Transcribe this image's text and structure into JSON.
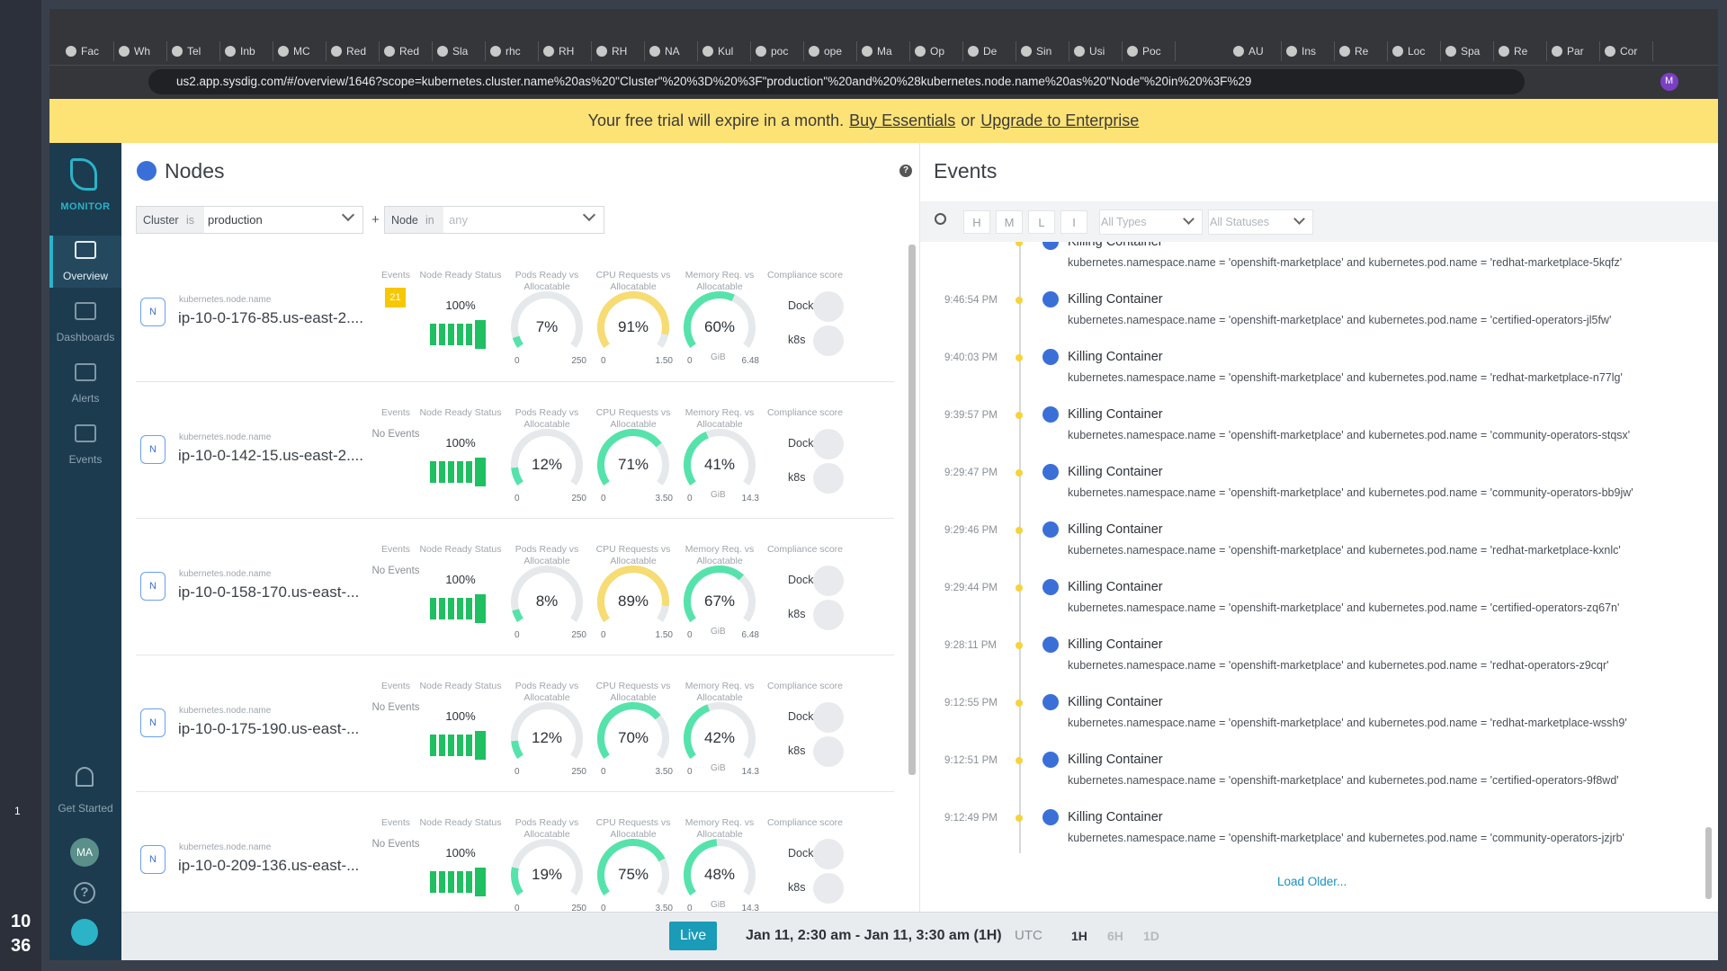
{
  "browser": {
    "tabs": [
      "Fac",
      "Wh",
      "Tel",
      "Inb",
      "MC",
      "Red",
      "Red",
      "Sla",
      "rhc",
      "RH",
      "RH",
      "NA",
      "Kul",
      "poc",
      "ope",
      "Ma",
      "Op",
      "De",
      "Sin",
      "Usi",
      "Poc",
      "AU",
      "Ins",
      "Re",
      "Loc",
      "Spa",
      "Re",
      "Par",
      "Cor"
    ],
    "url": "us2.app.sysdig.com/#/overview/1646?scope=kubernetes.cluster.name%20as%20\"Cluster\"%20%3D%20%3F\"production\"%20and%20%28kubernetes.node.name%20as%20\"Node\"%20in%20%3F%29",
    "profile": "M"
  },
  "banner": {
    "text": "Your free trial will expire in a month.",
    "link1": "Buy Essentials",
    "or": "or",
    "link2": "Upgrade to Enterprise"
  },
  "os": {
    "badge": "1",
    "clock": [
      "10",
      "36"
    ]
  },
  "sidebar": {
    "brand": "MONITOR",
    "items": [
      "Overview",
      "Dashboards",
      "Alerts",
      "Events"
    ],
    "get_started": "Get Started",
    "avatar": "MA",
    "help": "?"
  },
  "nodes": {
    "title": "Nodes",
    "help": "?",
    "plus": "+",
    "filters": [
      {
        "key": "Cluster",
        "op": "is",
        "value": "production"
      },
      {
        "key": "Node",
        "op": "in",
        "value": "any"
      }
    ],
    "headers": {
      "events": "Events",
      "ready": "Node Ready Status",
      "pods": "Pods Ready vs Allocatable",
      "cpu": "CPU Requests vs Allocatable",
      "mem": "Memory Req. vs Allocatable",
      "compliance": "Compliance score"
    },
    "name_label": "kubernetes.node.name",
    "node_icon": "N",
    "compliance_labels": [
      "Docker",
      "k8s"
    ],
    "rows": [
      {
        "name": "ip-10-0-176-85.us-east-2....",
        "events": "21",
        "ready": "100%",
        "pods": {
          "value": 7,
          "label": "7%",
          "min": "0",
          "max": "250",
          "color": "#55e3ab"
        },
        "cpu": {
          "value": 91,
          "label": "91%",
          "min": "0",
          "max": "1.50",
          "color": "#f6dc72"
        },
        "mem": {
          "value": 60,
          "label": "60%",
          "min": "0",
          "unit": "GiB",
          "max": "6.48",
          "color": "#55e3ab"
        }
      },
      {
        "name": "ip-10-0-142-15.us-east-2....",
        "events": "No Events",
        "ready": "100%",
        "pods": {
          "value": 12,
          "label": "12%",
          "min": "0",
          "max": "250",
          "color": "#55e3ab"
        },
        "cpu": {
          "value": 71,
          "label": "71%",
          "min": "0",
          "max": "3.50",
          "color": "#55e3ab"
        },
        "mem": {
          "value": 41,
          "label": "41%",
          "min": "0",
          "unit": "GiB",
          "max": "14.3",
          "color": "#55e3ab"
        }
      },
      {
        "name": "ip-10-0-158-170.us-east-...",
        "events": "No Events",
        "ready": "100%",
        "pods": {
          "value": 8,
          "label": "8%",
          "min": "0",
          "max": "250",
          "color": "#55e3ab"
        },
        "cpu": {
          "value": 89,
          "label": "89%",
          "min": "0",
          "max": "1.50",
          "color": "#f6dc72"
        },
        "mem": {
          "value": 67,
          "label": "67%",
          "min": "0",
          "unit": "GiB",
          "max": "6.48",
          "color": "#55e3ab"
        }
      },
      {
        "name": "ip-10-0-175-190.us-east-...",
        "events": "No Events",
        "ready": "100%",
        "pods": {
          "value": 12,
          "label": "12%",
          "min": "0",
          "max": "250",
          "color": "#55e3ab"
        },
        "cpu": {
          "value": 70,
          "label": "70%",
          "min": "0",
          "max": "3.50",
          "color": "#55e3ab"
        },
        "mem": {
          "value": 42,
          "label": "42%",
          "min": "0",
          "unit": "GiB",
          "max": "14.3",
          "color": "#55e3ab"
        }
      },
      {
        "name": "ip-10-0-209-136.us-east-...",
        "events": "No Events",
        "ready": "100%",
        "pods": {
          "value": 19,
          "label": "19%",
          "min": "0",
          "max": "250",
          "color": "#55e3ab"
        },
        "cpu": {
          "value": 75,
          "label": "75%",
          "min": "0",
          "max": "3.50",
          "color": "#55e3ab"
        },
        "mem": {
          "value": 48,
          "label": "48%",
          "min": "0",
          "unit": "GiB",
          "max": "14.3",
          "color": "#55e3ab"
        }
      }
    ]
  },
  "events": {
    "title": "Events",
    "severities": [
      "H",
      "M",
      "L",
      "I"
    ],
    "types": "All Types",
    "statuses": "All Statuses",
    "load_older": "Load Older...",
    "items": [
      {
        "title": "Killing Container",
        "detail": "kubernetes.namespace.name = 'openshift-marketplace' and kubernetes.pod.name = 'redhat-marketplace-5kqfz'"
      },
      {
        "time": "9:46:54 PM",
        "title": "Killing Container",
        "detail": "kubernetes.namespace.name = 'openshift-marketplace' and kubernetes.pod.name = 'certified-operators-jl5fw'"
      },
      {
        "time": "9:40:03 PM",
        "title": "Killing Container",
        "detail": "kubernetes.namespace.name = 'openshift-marketplace' and kubernetes.pod.name = 'redhat-marketplace-n77lg'"
      },
      {
        "time": "9:39:57 PM",
        "title": "Killing Container",
        "detail": "kubernetes.namespace.name = 'openshift-marketplace' and kubernetes.pod.name = 'community-operators-stqsx'"
      },
      {
        "time": "9:29:47 PM",
        "title": "Killing Container",
        "detail": "kubernetes.namespace.name = 'openshift-marketplace' and kubernetes.pod.name = 'community-operators-bb9jw'"
      },
      {
        "time": "9:29:46 PM",
        "title": "Killing Container",
        "detail": "kubernetes.namespace.name = 'openshift-marketplace' and kubernetes.pod.name = 'redhat-marketplace-kxnlc'"
      },
      {
        "time": "9:29:44 PM",
        "title": "Killing Container",
        "detail": "kubernetes.namespace.name = 'openshift-marketplace' and kubernetes.pod.name = 'certified-operators-zq67n'"
      },
      {
        "time": "9:28:11 PM",
        "title": "Killing Container",
        "detail": "kubernetes.namespace.name = 'openshift-marketplace' and kubernetes.pod.name = 'redhat-operators-z9cqr'"
      },
      {
        "time": "9:12:55 PM",
        "title": "Killing Container",
        "detail": "kubernetes.namespace.name = 'openshift-marketplace' and kubernetes.pod.name = 'redhat-marketplace-wssh9'"
      },
      {
        "time": "9:12:51 PM",
        "title": "Killing Container",
        "detail": "kubernetes.namespace.name = 'openshift-marketplace' and kubernetes.pod.name = 'certified-operators-9f8wd'"
      },
      {
        "time": "9:12:49 PM",
        "title": "Killing Container",
        "detail": "kubernetes.namespace.name = 'openshift-marketplace' and kubernetes.pod.name = 'community-operators-jzjrb'"
      }
    ]
  },
  "timebar": {
    "live": "Live",
    "range": "Jan 11, 2:30 am - Jan 11, 3:30 am (1H)",
    "tz": "UTC",
    "spans": [
      "1H",
      "6H",
      "1D"
    ]
  }
}
